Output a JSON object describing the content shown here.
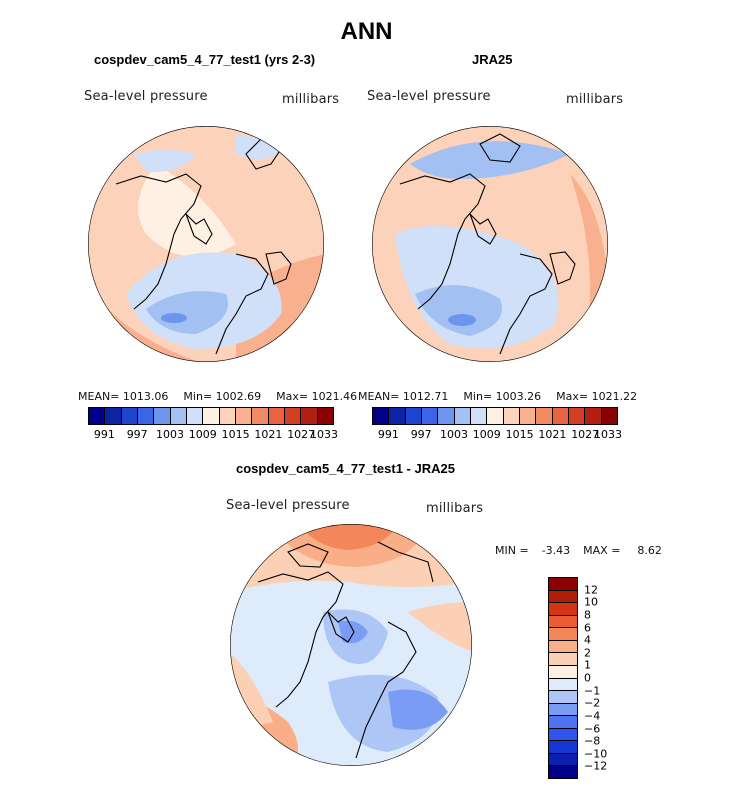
{
  "figure": {
    "title": "ANN",
    "variable_label": "Sea-level pressure",
    "units_label": "millibars"
  },
  "colors": {
    "abs_levels": [
      "#00008b",
      "#0b24a6",
      "#1e43cd",
      "#3a66e6",
      "#6d95ee",
      "#a3c0f3",
      "#cfe0f8",
      "#fff0e4",
      "#fcd3ba",
      "#f8b08e",
      "#f28a63",
      "#e8653f",
      "#d23e22",
      "#b21f0f",
      "#8b0000"
    ],
    "diff_levels": [
      "#00008b",
      "#0b20ad",
      "#1636d6",
      "#2d55ee",
      "#4c73f2",
      "#7b9cf4",
      "#adc6f6",
      "#deebfb",
      "#fff0e4",
      "#fcd0b4",
      "#f9ae87",
      "#f4865c",
      "#eb5c33",
      "#d33616",
      "#b01d08",
      "#8b0000"
    ]
  },
  "panels": {
    "model": {
      "title": "cospdev_cam5_4_77_test1 (yrs 2-3)",
      "mean_label": "MEAN=",
      "mean": "1013.06",
      "min_label": "Min=",
      "min": "1002.69",
      "max_label": "Max=",
      "max": "1021.46"
    },
    "obs": {
      "title": "JRA25",
      "mean_label": "MEAN=",
      "mean": "1012.71",
      "min_label": "Min=",
      "min": "1003.26",
      "max_label": "Max=",
      "max": "1021.22"
    },
    "diff": {
      "title": "cospdev_cam5_4_77_test1 - JRA25",
      "min_label": "MIN =",
      "min": "-3.43",
      "max_label": "MAX =",
      "max": "8.62"
    }
  },
  "abs_ticks": [
    "991",
    "997",
    "1003",
    "1009",
    "1015",
    "1021",
    "1027",
    "1033"
  ],
  "diff_ticks": [
    "12",
    "10",
    "8",
    "6",
    "4",
    "2",
    "1",
    "0",
    "−1",
    "−2",
    "−4",
    "−6",
    "−8",
    "−10",
    "−12"
  ],
  "chart_data": [
    {
      "type": "heatmap",
      "title": "cospdev_cam5_4_77_test1 (yrs 2-3)",
      "projection": "polar stereographic, north pole",
      "variable": "Sea-level pressure",
      "units": "millibars",
      "contour_levels": [
        991,
        994,
        997,
        1000,
        1003,
        1006,
        1009,
        1012,
        1015,
        1018,
        1021,
        1024,
        1027,
        1030,
        1033
      ],
      "mean": 1013.06,
      "min": 1002.69,
      "max": 1021.46
    },
    {
      "type": "heatmap",
      "title": "JRA25",
      "projection": "polar stereographic, north pole",
      "variable": "Sea-level pressure",
      "units": "millibars",
      "contour_levels": [
        991,
        994,
        997,
        1000,
        1003,
        1006,
        1009,
        1012,
        1015,
        1018,
        1021,
        1024,
        1027,
        1030,
        1033
      ],
      "mean": 1012.71,
      "min": 1003.26,
      "max": 1021.22
    },
    {
      "type": "heatmap",
      "title": "cospdev_cam5_4_77_test1 - JRA25",
      "projection": "polar stereographic, north pole",
      "variable": "Sea-level pressure",
      "units": "millibars",
      "contour_levels": [
        -12,
        -10,
        -8,
        -6,
        -4,
        -2,
        -1,
        0,
        1,
        2,
        4,
        6,
        8,
        10,
        12
      ],
      "min": -3.43,
      "max": 8.62
    }
  ]
}
